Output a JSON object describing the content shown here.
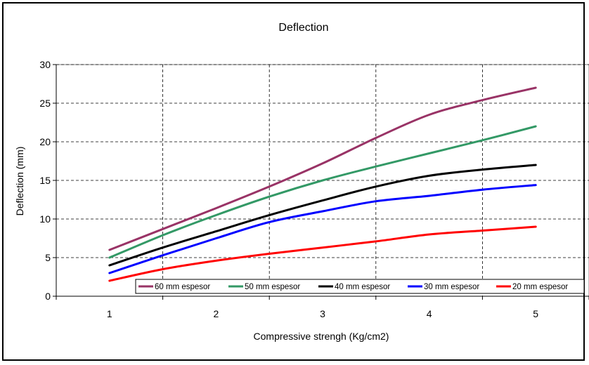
{
  "chart_data": {
    "type": "line",
    "title": "Deflection",
    "xlabel": "Compressive strengh (Kg/cm2)",
    "ylabel": "Deflection (mm)",
    "categories": [
      "1",
      "2",
      "3",
      "4",
      "5"
    ],
    "x": [
      1,
      1.5,
      2,
      2.5,
      3,
      3.5,
      4,
      4.5,
      5
    ],
    "ylim": [
      0,
      30
    ],
    "yticks": [
      "0",
      "5",
      "10",
      "15",
      "20",
      "25",
      "30"
    ],
    "grid": true,
    "legend_position": "bottom-right",
    "series": [
      {
        "name": "60 mm espesor",
        "color": "#993366",
        "values": [
          6,
          8.7,
          11.4,
          14.2,
          17.2,
          20.5,
          23.5,
          25.4,
          27
        ]
      },
      {
        "name": "50 mm espesor",
        "color": "#339966",
        "values": [
          5,
          7.9,
          10.5,
          12.9,
          15,
          16.8,
          18.5,
          20.2,
          22
        ]
      },
      {
        "name": "40 mm espesor",
        "color": "#000000",
        "values": [
          4,
          6.3,
          8.4,
          10.5,
          12.4,
          14.2,
          15.6,
          16.4,
          17
        ]
      },
      {
        "name": "30 mm espesor",
        "color": "#0000ff",
        "values": [
          3,
          5.3,
          7.5,
          9.6,
          11,
          12.3,
          13,
          13.8,
          14.4
        ]
      },
      {
        "name": "20 mm espesor",
        "color": "#ff0000",
        "values": [
          2,
          3.5,
          4.6,
          5.5,
          6.3,
          7.1,
          8,
          8.5,
          9
        ]
      }
    ]
  }
}
